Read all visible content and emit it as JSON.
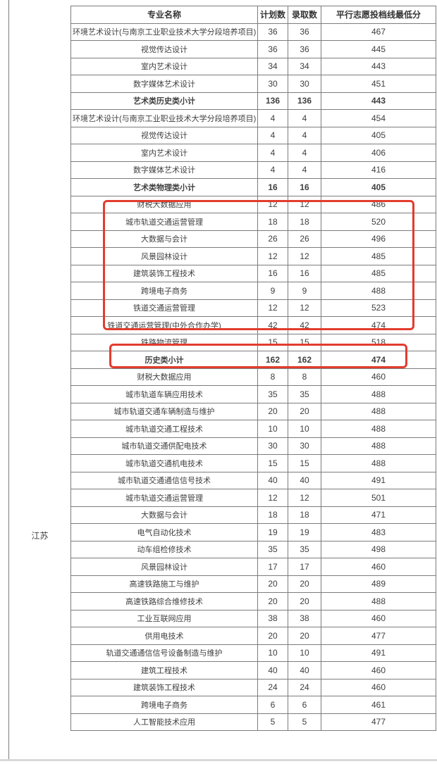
{
  "province": {
    "label": "江苏"
  },
  "table": {
    "headers": {
      "major": "专业名称",
      "plan": "计划数",
      "admitted": "录取数",
      "min_score": "平行志愿投档线最低分"
    },
    "rows": [
      {
        "major": "环境艺术设计(与南京工业职业技术大学分段培养项目)",
        "plan": "36",
        "admitted": "36",
        "score": "467",
        "bold": false
      },
      {
        "major": "视觉传达设计",
        "plan": "36",
        "admitted": "36",
        "score": "445",
        "bold": false
      },
      {
        "major": "室内艺术设计",
        "plan": "34",
        "admitted": "34",
        "score": "443",
        "bold": false
      },
      {
        "major": "数字媒体艺术设计",
        "plan": "30",
        "admitted": "30",
        "score": "451",
        "bold": false
      },
      {
        "major": "艺术类历史类小计",
        "plan": "136",
        "admitted": "136",
        "score": "443",
        "bold": true
      },
      {
        "major": "环境艺术设计(与南京工业职业技术大学分段培养项目)",
        "plan": "4",
        "admitted": "4",
        "score": "454",
        "bold": false
      },
      {
        "major": "视觉传达设计",
        "plan": "4",
        "admitted": "4",
        "score": "405",
        "bold": false
      },
      {
        "major": "室内艺术设计",
        "plan": "4",
        "admitted": "4",
        "score": "406",
        "bold": false
      },
      {
        "major": "数字媒体艺术设计",
        "plan": "4",
        "admitted": "4",
        "score": "416",
        "bold": false
      },
      {
        "major": "艺术类物理类小计",
        "plan": "16",
        "admitted": "16",
        "score": "405",
        "bold": true
      },
      {
        "major": "财税大数据应用",
        "plan": "12",
        "admitted": "12",
        "score": "486",
        "bold": false
      },
      {
        "major": "城市轨道交通运营管理",
        "plan": "18",
        "admitted": "18",
        "score": "520",
        "bold": false
      },
      {
        "major": "大数据与会计",
        "plan": "26",
        "admitted": "26",
        "score": "496",
        "bold": false
      },
      {
        "major": "风景园林设计",
        "plan": "12",
        "admitted": "12",
        "score": "485",
        "bold": false
      },
      {
        "major": "建筑装饰工程技术",
        "plan": "16",
        "admitted": "16",
        "score": "485",
        "bold": false
      },
      {
        "major": "跨境电子商务",
        "plan": "9",
        "admitted": "9",
        "score": "488",
        "bold": false
      },
      {
        "major": "铁道交通运营管理",
        "plan": "12",
        "admitted": "12",
        "score": "523",
        "bold": false
      },
      {
        "major": "铁道交通运营管理(中外合作办学)",
        "plan": "42",
        "admitted": "42",
        "score": "474",
        "bold": false
      },
      {
        "major": "铁路物流管理",
        "plan": "15",
        "admitted": "15",
        "score": "518",
        "bold": false
      },
      {
        "major": "历史类小计",
        "plan": "162",
        "admitted": "162",
        "score": "474",
        "bold": true
      },
      {
        "major": "财税大数据应用",
        "plan": "8",
        "admitted": "8",
        "score": "460",
        "bold": false
      },
      {
        "major": "城市轨道车辆应用技术",
        "plan": "35",
        "admitted": "35",
        "score": "488",
        "bold": false
      },
      {
        "major": "城市轨道交通车辆制造与维护",
        "plan": "20",
        "admitted": "20",
        "score": "488",
        "bold": false
      },
      {
        "major": "城市轨道交通工程技术",
        "plan": "10",
        "admitted": "10",
        "score": "488",
        "bold": false
      },
      {
        "major": "城市轨道交通供配电技术",
        "plan": "30",
        "admitted": "30",
        "score": "488",
        "bold": false
      },
      {
        "major": "城市轨道交通机电技术",
        "plan": "15",
        "admitted": "15",
        "score": "488",
        "bold": false
      },
      {
        "major": "城市轨道交通通信信号技术",
        "plan": "40",
        "admitted": "40",
        "score": "491",
        "bold": false
      },
      {
        "major": "城市轨道交通运营管理",
        "plan": "12",
        "admitted": "12",
        "score": "501",
        "bold": false
      },
      {
        "major": "大数据与会计",
        "plan": "18",
        "admitted": "18",
        "score": "471",
        "bold": false
      },
      {
        "major": "电气自动化技术",
        "plan": "19",
        "admitted": "19",
        "score": "483",
        "bold": false
      },
      {
        "major": "动车组检修技术",
        "plan": "35",
        "admitted": "35",
        "score": "498",
        "bold": false
      },
      {
        "major": "风景园林设计",
        "plan": "17",
        "admitted": "17",
        "score": "460",
        "bold": false
      },
      {
        "major": "高速铁路施工与维护",
        "plan": "20",
        "admitted": "20",
        "score": "489",
        "bold": false
      },
      {
        "major": "高速铁路综合维修技术",
        "plan": "20",
        "admitted": "20",
        "score": "488",
        "bold": false
      },
      {
        "major": "工业互联网应用",
        "plan": "38",
        "admitted": "38",
        "score": "460",
        "bold": false
      },
      {
        "major": "供用电技术",
        "plan": "20",
        "admitted": "20",
        "score": "477",
        "bold": false
      },
      {
        "major": "轨道交通通信信号设备制造与维护",
        "plan": "10",
        "admitted": "10",
        "score": "491",
        "bold": false
      },
      {
        "major": "建筑工程技术",
        "plan": "40",
        "admitted": "40",
        "score": "460",
        "bold": false
      },
      {
        "major": "建筑装饰工程技术",
        "plan": "24",
        "admitted": "24",
        "score": "460",
        "bold": false
      },
      {
        "major": "跨境电子商务",
        "plan": "6",
        "admitted": "6",
        "score": "461",
        "bold": false
      },
      {
        "major": "人工智能技术应用",
        "plan": "5",
        "admitted": "5",
        "score": "477",
        "bold": false
      }
    ]
  },
  "highlights": {
    "color": "#e23c2d",
    "box1": {
      "first_row": "财税大数据应用",
      "last_row": "铁道交通运营管理",
      "row_start_index": 10,
      "row_end_index": 16
    },
    "box2": {
      "row": "铁路物流管理",
      "row_index": 18
    }
  },
  "colors": {
    "border": "#7c7c7c",
    "text": "#3f3f3f",
    "highlight": "#e23c2d",
    "bottom_edge": "#d9d9d9"
  }
}
